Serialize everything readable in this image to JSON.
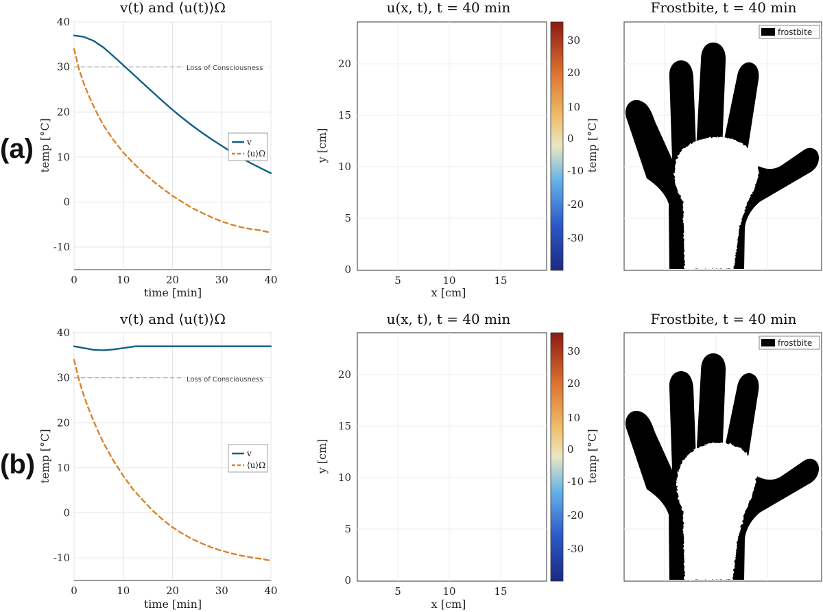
{
  "colors": {
    "v_line": "#0d5f86",
    "u_line": "#d9822b",
    "threshold": "#a8a8a8",
    "grid": "#e4e4e4",
    "frostbite": "#000000"
  },
  "rows": [
    {
      "label": "(a)",
      "line_title": "v(t) and ⟨u(t)⟩Ω",
      "heat_title": "u(x, t), t = 40 min",
      "frost_title": "Frostbite, t = 40 min",
      "frost_legend": "frostbite",
      "heat_profile": "mild"
    },
    {
      "label": "(b)",
      "line_title": "v(t) and ⟨u(t)⟩Ω",
      "heat_title": "u(x, t), t = 40 min",
      "frost_title": "Frostbite, t = 40 min",
      "frost_legend": "frostbite",
      "heat_profile": "severe"
    }
  ],
  "heat_axes": {
    "xlabel": "x [cm]",
    "ylabel": "y [cm]",
    "xticks": [
      "5",
      "10",
      "15"
    ],
    "yticks": [
      "0",
      "5",
      "10",
      "15",
      "20"
    ],
    "cbar_label": "temp [°C]",
    "cbar_ticks": [
      "30",
      "20",
      "10",
      "0",
      "-10",
      "-20",
      "-30"
    ]
  },
  "chart_data": [
    {
      "type": "line",
      "title": "v(t) and ⟨u(t)⟩Ω",
      "xlabel": "time [min]",
      "ylabel": "temp [°C]",
      "xlim": [
        0,
        40
      ],
      "ylim": [
        -15,
        40
      ],
      "xticks": [
        0,
        10,
        20,
        30,
        40
      ],
      "yticks": [
        40,
        30,
        20,
        10,
        0,
        -10
      ],
      "grid": true,
      "legend_position": "right",
      "annotation": "Loss of Consciousness",
      "threshold": 30,
      "series": [
        {
          "name": "v",
          "style": "solid",
          "x": [
            0,
            2,
            4,
            6,
            8,
            10,
            12,
            14,
            16,
            18,
            20,
            22,
            24,
            26,
            28,
            30,
            32,
            34,
            36,
            38,
            40
          ],
          "y": [
            37,
            36.7,
            35.8,
            34.3,
            32.4,
            30.4,
            28.4,
            26.4,
            24.4,
            22.4,
            20.5,
            18.7,
            17,
            15.4,
            13.9,
            12.5,
            11.1,
            9.8,
            8.6,
            7.5,
            6.4
          ]
        },
        {
          "name": "⟨u⟩Ω",
          "style": "dashed",
          "x": [
            0,
            1,
            2,
            3,
            4,
            5,
            6,
            8,
            10,
            12,
            14,
            16,
            18,
            20,
            22,
            24,
            26,
            28,
            30,
            32,
            34,
            36,
            38,
            40
          ],
          "y": [
            34,
            29.5,
            26.3,
            23.6,
            21.2,
            19,
            17,
            13.8,
            11,
            8.7,
            6.6,
            4.7,
            3,
            1.4,
            0,
            -1.3,
            -2.4,
            -3.4,
            -4.3,
            -5,
            -5.6,
            -6,
            -6.3,
            -6.8
          ]
        }
      ]
    },
    {
      "type": "line",
      "title": "v(t) and ⟨u(t)⟩Ω",
      "xlabel": "time [min]",
      "ylabel": "temp [°C]",
      "xlim": [
        0,
        40
      ],
      "ylim": [
        -15,
        40
      ],
      "xticks": [
        0,
        10,
        20,
        30,
        40
      ],
      "yticks": [
        40,
        30,
        20,
        10,
        0,
        -10
      ],
      "grid": true,
      "legend_position": "right",
      "annotation": "Loss of Consciousness",
      "threshold": 30,
      "series": [
        {
          "name": "v",
          "style": "solid",
          "x": [
            0,
            2,
            4,
            6,
            8,
            10,
            12.5,
            16,
            20,
            25,
            30,
            35,
            40
          ],
          "y": [
            37,
            36.6,
            36.2,
            36.1,
            36.3,
            36.6,
            37,
            37,
            37,
            37,
            37,
            37,
            37
          ]
        },
        {
          "name": "⟨u⟩Ω",
          "style": "dashed",
          "x": [
            0,
            1,
            2,
            3,
            4,
            5,
            6,
            8,
            10,
            12,
            14,
            16,
            18,
            20,
            22,
            24,
            26,
            28,
            30,
            32,
            34,
            36,
            38,
            40
          ],
          "y": [
            34,
            29.5,
            26,
            23,
            20.3,
            17.8,
            15.5,
            11.6,
            8.2,
            5.2,
            2.8,
            0.5,
            -1.5,
            -3.2,
            -4.6,
            -5.8,
            -6.8,
            -7.7,
            -8.4,
            -9,
            -9.5,
            -9.9,
            -10.2,
            -10.6
          ]
        }
      ]
    }
  ]
}
